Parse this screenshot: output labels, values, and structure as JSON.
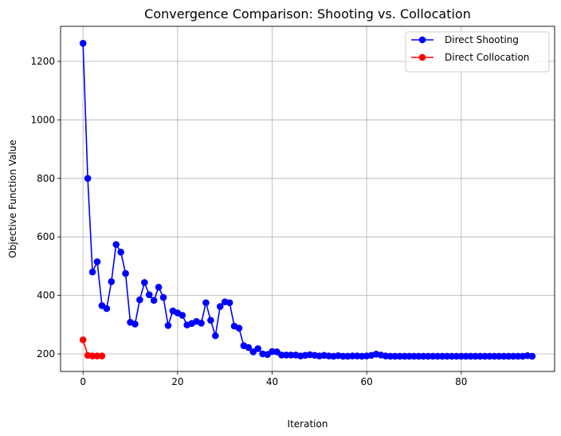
{
  "chart_data": {
    "type": "line",
    "title": "Convergence Comparison: Shooting vs. Collocation",
    "xlabel": "Iteration",
    "ylabel": "Objective Function Value",
    "xlim": [
      -4.75,
      99.75
    ],
    "ylim": [
      140,
      1320
    ],
    "xticks": [
      0,
      20,
      40,
      60,
      80
    ],
    "yticks": [
      200,
      400,
      600,
      800,
      1000,
      1200
    ],
    "grid": true,
    "legend_position": "top-right",
    "series": [
      {
        "name": "Direct Shooting",
        "color": "#0000ff",
        "x": [
          0,
          1,
          2,
          3,
          4,
          5,
          6,
          7,
          8,
          9,
          10,
          11,
          12,
          13,
          14,
          15,
          16,
          17,
          18,
          19,
          20,
          21,
          22,
          23,
          24,
          25,
          26,
          27,
          28,
          29,
          30,
          31,
          32,
          33,
          34,
          35,
          36,
          37,
          38,
          39,
          40,
          41,
          42,
          43,
          44,
          45,
          46,
          47,
          48,
          49,
          50,
          51,
          52,
          53,
          54,
          55,
          56,
          57,
          58,
          59,
          60,
          61,
          62,
          63,
          64,
          65,
          66,
          67,
          68,
          69,
          70,
          71,
          72,
          73,
          74,
          75,
          76,
          77,
          78,
          79,
          80,
          81,
          82,
          83,
          84,
          85,
          86,
          87,
          88,
          89,
          90,
          91,
          92,
          93,
          94,
          95
        ],
        "values": [
          1262,
          800,
          480,
          515,
          365,
          355,
          447,
          574,
          548,
          475,
          308,
          302,
          385,
          444,
          402,
          383,
          428,
          393,
          297,
          347,
          340,
          332,
          299,
          304,
          311,
          305,
          375,
          315,
          262,
          362,
          378,
          375,
          295,
          288,
          228,
          222,
          207,
          218,
          200,
          198,
          208,
          207,
          196,
          196,
          196,
          196,
          193,
          195,
          197,
          195,
          193,
          195,
          193,
          192,
          194,
          192,
          192,
          193,
          193,
          192,
          193,
          195,
          199,
          196,
          193,
          192,
          192,
          192,
          192,
          192,
          192,
          192,
          192,
          192,
          192,
          192,
          192,
          192,
          192,
          192,
          192,
          192,
          192,
          192,
          192,
          192,
          192,
          192,
          192,
          192,
          192,
          192,
          192,
          192,
          194,
          192
        ]
      },
      {
        "name": "Direct Collocation",
        "color": "#ff0000",
        "x": [
          0,
          1,
          2,
          3,
          4
        ],
        "values": [
          248,
          195,
          193,
          193,
          193
        ]
      }
    ]
  }
}
